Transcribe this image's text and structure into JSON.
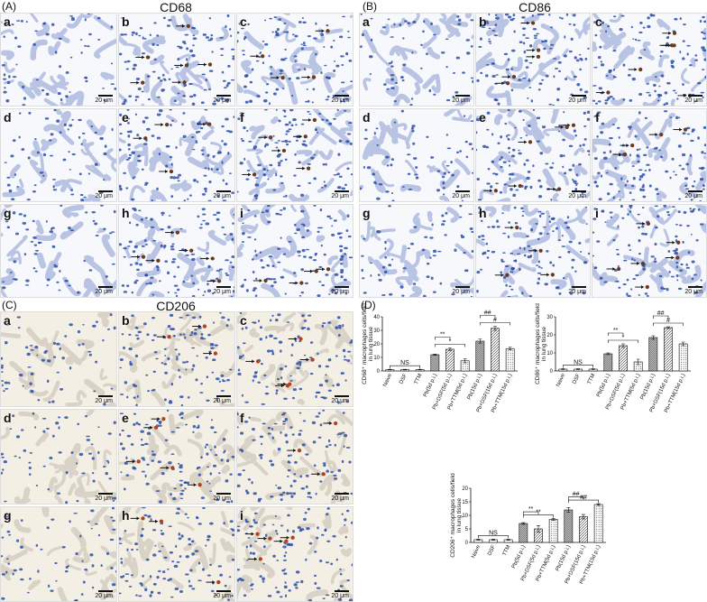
{
  "panels": {
    "A": {
      "label": "(A)",
      "title": "CD68"
    },
    "B": {
      "label": "(B)",
      "title": "CD86"
    },
    "C": {
      "label": "(C)",
      "title": "CD206"
    },
    "D": {
      "label": "(D)"
    }
  },
  "tile_letters": [
    "a",
    "b",
    "c",
    "d",
    "e",
    "f",
    "g",
    "h",
    "i"
  ],
  "scale_bar": "20 μm",
  "stain_colors": {
    "background": "#f4efe4",
    "tissue": "#c7cde3",
    "nuclei": "#2c4fa8",
    "positive": "#6b3a1e",
    "arrow": "#111111"
  },
  "chart_data": [
    {
      "type": "bar",
      "ylabel": "CD68⁺ macrophages cells/field in lung tissue",
      "ylim": [
        0,
        40
      ],
      "yticks": [
        0,
        10,
        20,
        30,
        40
      ],
      "categories": [
        "Naive",
        "DSF",
        "TTM",
        "Pb(5d p.i.)",
        "Pb+DSF(5d p.i.)",
        "Pb+TTM(5d p.i.)",
        "Pb(15d p.i.)",
        "Pb+DSF(15d p.i.)",
        "Pb+TTM(15d p.i.)"
      ],
      "values": [
        1,
        1,
        1,
        12,
        16,
        7.5,
        22,
        31.5,
        16.5
      ],
      "errors": [
        0.2,
        0.2,
        0.2,
        0.5,
        1,
        1.5,
        1.5,
        1.5,
        1
      ],
      "significance": [
        {
          "from": 0,
          "to": 2,
          "label": "NS"
        },
        {
          "from": 3,
          "to": 4,
          "label": "**"
        },
        {
          "from": 3,
          "to": 5,
          "label": "*"
        },
        {
          "from": 6,
          "to": 7,
          "label": "##"
        },
        {
          "from": 6,
          "to": 8,
          "label": "#"
        }
      ]
    },
    {
      "type": "bar",
      "ylabel": "CD86⁺ macrophages cells/field in lung tissue",
      "ylim": [
        0,
        30
      ],
      "yticks": [
        0,
        10,
        20,
        30
      ],
      "categories": [
        "Naive",
        "DSF",
        "TTM",
        "Pb(5d p.i.)",
        "Pb+DSF(5d p.i.)",
        "Pb+TTM(5d p.i.)",
        "Pb(15d p.i.)",
        "Pb+DSF(15d p.i.)",
        "Pb+TTM(15d p.i.)"
      ],
      "values": [
        1,
        1,
        1,
        9.5,
        14,
        5,
        18.5,
        24,
        15
      ],
      "errors": [
        0.2,
        0.2,
        0.2,
        0.5,
        1,
        1.5,
        1,
        0.5,
        1
      ],
      "significance": [
        {
          "from": 0,
          "to": 2,
          "label": "NS"
        },
        {
          "from": 3,
          "to": 4,
          "label": "**"
        },
        {
          "from": 3,
          "to": 5,
          "label": "*"
        },
        {
          "from": 6,
          "to": 7,
          "label": "##"
        },
        {
          "from": 6,
          "to": 8,
          "label": "#"
        }
      ]
    },
    {
      "type": "bar",
      "ylabel": "CD206⁺ macrophages cells/field in lung tissue",
      "ylim": [
        0,
        20
      ],
      "yticks": [
        0,
        5,
        10,
        15,
        20
      ],
      "categories": [
        "Naive",
        "DSF",
        "TTM",
        "Pb(5d p.i.)",
        "Pb+DSF(5d p.i.)",
        "Pb+TTM(5d p.i.)",
        "Pb(15d p.i.)",
        "Pb+DSF(15d p.i.)",
        "Pb+TTM(15d p.i.)"
      ],
      "values": [
        1,
        1,
        1,
        7,
        5,
        8.5,
        12,
        9.5,
        14
      ],
      "errors": [
        0.2,
        0.2,
        0.2,
        0.3,
        1.2,
        0.3,
        0.8,
        0.8,
        0.3
      ],
      "significance": [
        {
          "from": 0,
          "to": 2,
          "label": "NS"
        },
        {
          "from": 3,
          "to": 4,
          "label": "**"
        },
        {
          "from": 3,
          "to": 5,
          "label": "**"
        },
        {
          "from": 6,
          "to": 7,
          "label": "##"
        },
        {
          "from": 6,
          "to": 8,
          "label": "##"
        }
      ]
    }
  ]
}
